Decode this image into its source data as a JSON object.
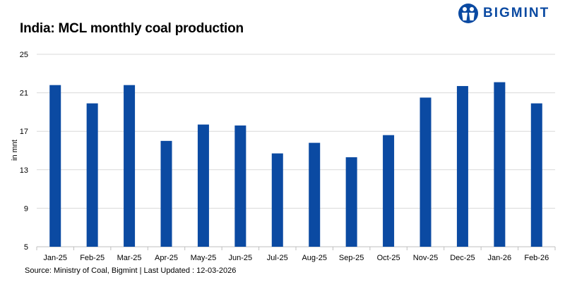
{
  "brand": {
    "name": "BIGMINT",
    "logo_icon": "bigmint-people-icon",
    "color": "#0b4aa2"
  },
  "footer": {
    "source": "Source: Ministry of Coal, Bigmint | Last Updated : 12-03-2026"
  },
  "chart_data": {
    "type": "bar",
    "title": "India: MCL monthly coal production",
    "ylabel": "in mnt",
    "xlabel": "",
    "categories": [
      "Jan-25",
      "Feb-25",
      "Mar-25",
      "Apr-25",
      "May-25",
      "Jun-25",
      "Jul-25",
      "Aug-25",
      "Sep-25",
      "Oct-25",
      "Nov-25",
      "Dec-25",
      "Jan-26",
      "Feb-26"
    ],
    "values": [
      21.8,
      19.9,
      21.8,
      16.0,
      17.7,
      17.6,
      14.7,
      15.8,
      14.3,
      16.6,
      20.5,
      21.7,
      22.1,
      19.9
    ],
    "ylim": [
      5,
      25
    ],
    "yticks": [
      5,
      9,
      13,
      17,
      21,
      25
    ],
    "grid": true,
    "legend": "none",
    "bar_color": "#0b4aa2",
    "grid_color": "#d9d9d9"
  }
}
